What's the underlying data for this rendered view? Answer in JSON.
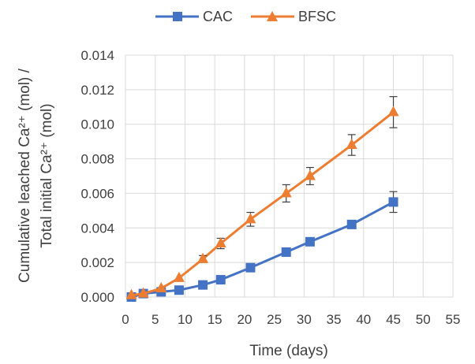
{
  "chart_data": {
    "type": "line",
    "xlabel": "Time (days)",
    "ylabel_line1": "Cumulative leached Ca²⁺ (mol) /",
    "ylabel_line2": "Total initial Ca²⁺ (mol)",
    "xlim": [
      0,
      55
    ],
    "ylim": [
      0,
      0.014
    ],
    "x_ticks": [
      "0",
      "5",
      "10",
      "15",
      "20",
      "25",
      "30",
      "35",
      "40",
      "45",
      "50",
      "55"
    ],
    "y_ticks": [
      "0.000",
      "0.002",
      "0.004",
      "0.006",
      "0.008",
      "0.010",
      "0.012",
      "0.014"
    ],
    "grid": true,
    "legend_position": "top",
    "series": [
      {
        "name": "CAC",
        "color": "#4472C4",
        "marker": "square",
        "x": [
          1,
          3,
          6,
          9,
          13,
          16,
          21,
          27,
          31,
          38,
          45
        ],
        "y": [
          0.0,
          0.0002,
          0.0003,
          0.0004,
          0.0007,
          0.001,
          0.0017,
          0.0026,
          0.0032,
          0.0042,
          0.0055
        ],
        "error": [
          0,
          0,
          0,
          0,
          0,
          0,
          0,
          0,
          0,
          0,
          0.0006
        ]
      },
      {
        "name": "BFSC",
        "color": "#ED7D31",
        "marker": "triangle",
        "x": [
          1,
          3,
          6,
          9,
          13,
          16,
          21,
          27,
          31,
          38,
          45
        ],
        "y": [
          0.0001,
          0.0002,
          0.0005,
          0.0011,
          0.0022,
          0.0031,
          0.0045,
          0.006,
          0.007,
          0.0088,
          0.0107
        ],
        "error": [
          0,
          0,
          0,
          0,
          0.0002,
          0.0003,
          0.0004,
          0.0005,
          0.0005,
          0.0006,
          0.0009
        ]
      }
    ]
  }
}
